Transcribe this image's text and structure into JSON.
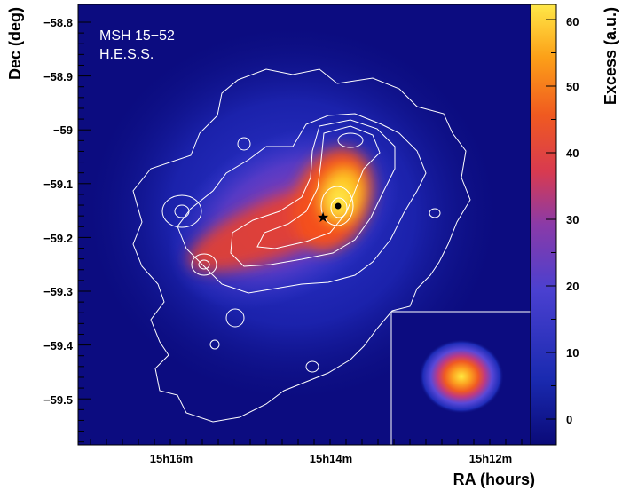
{
  "chart_data": {
    "type": "heatmap",
    "title_lines": [
      "MSH 15−52",
      "H.E.S.S."
    ],
    "xlabel": "RA (hours)",
    "ylabel": "Dec (deg)",
    "colorbar_label": "Excess (a.u.)",
    "x_ticks": [
      "15h16m",
      "15h14m",
      "15h12m"
    ],
    "y_ticks": [
      "−58.8",
      "−58.9",
      "−59",
      "−59.1",
      "−59.2",
      "−59.3",
      "−59.4",
      "−59.5"
    ],
    "colorbar_ticks": [
      "0",
      "10",
      "20",
      "30",
      "40",
      "50",
      "60"
    ],
    "colorbar_range": [
      -5,
      62
    ],
    "peak_excess": 62,
    "markers": [
      {
        "symbol": "star",
        "description": "pulsar position"
      },
      {
        "symbol": "dot",
        "description": "emission centroid"
      }
    ],
    "inset": "PSF",
    "colors": [
      "#0a0a78",
      "#2030c8",
      "#5a4ad8",
      "#c03a70",
      "#f04a28",
      "#fc8c16",
      "#ffe040"
    ]
  }
}
